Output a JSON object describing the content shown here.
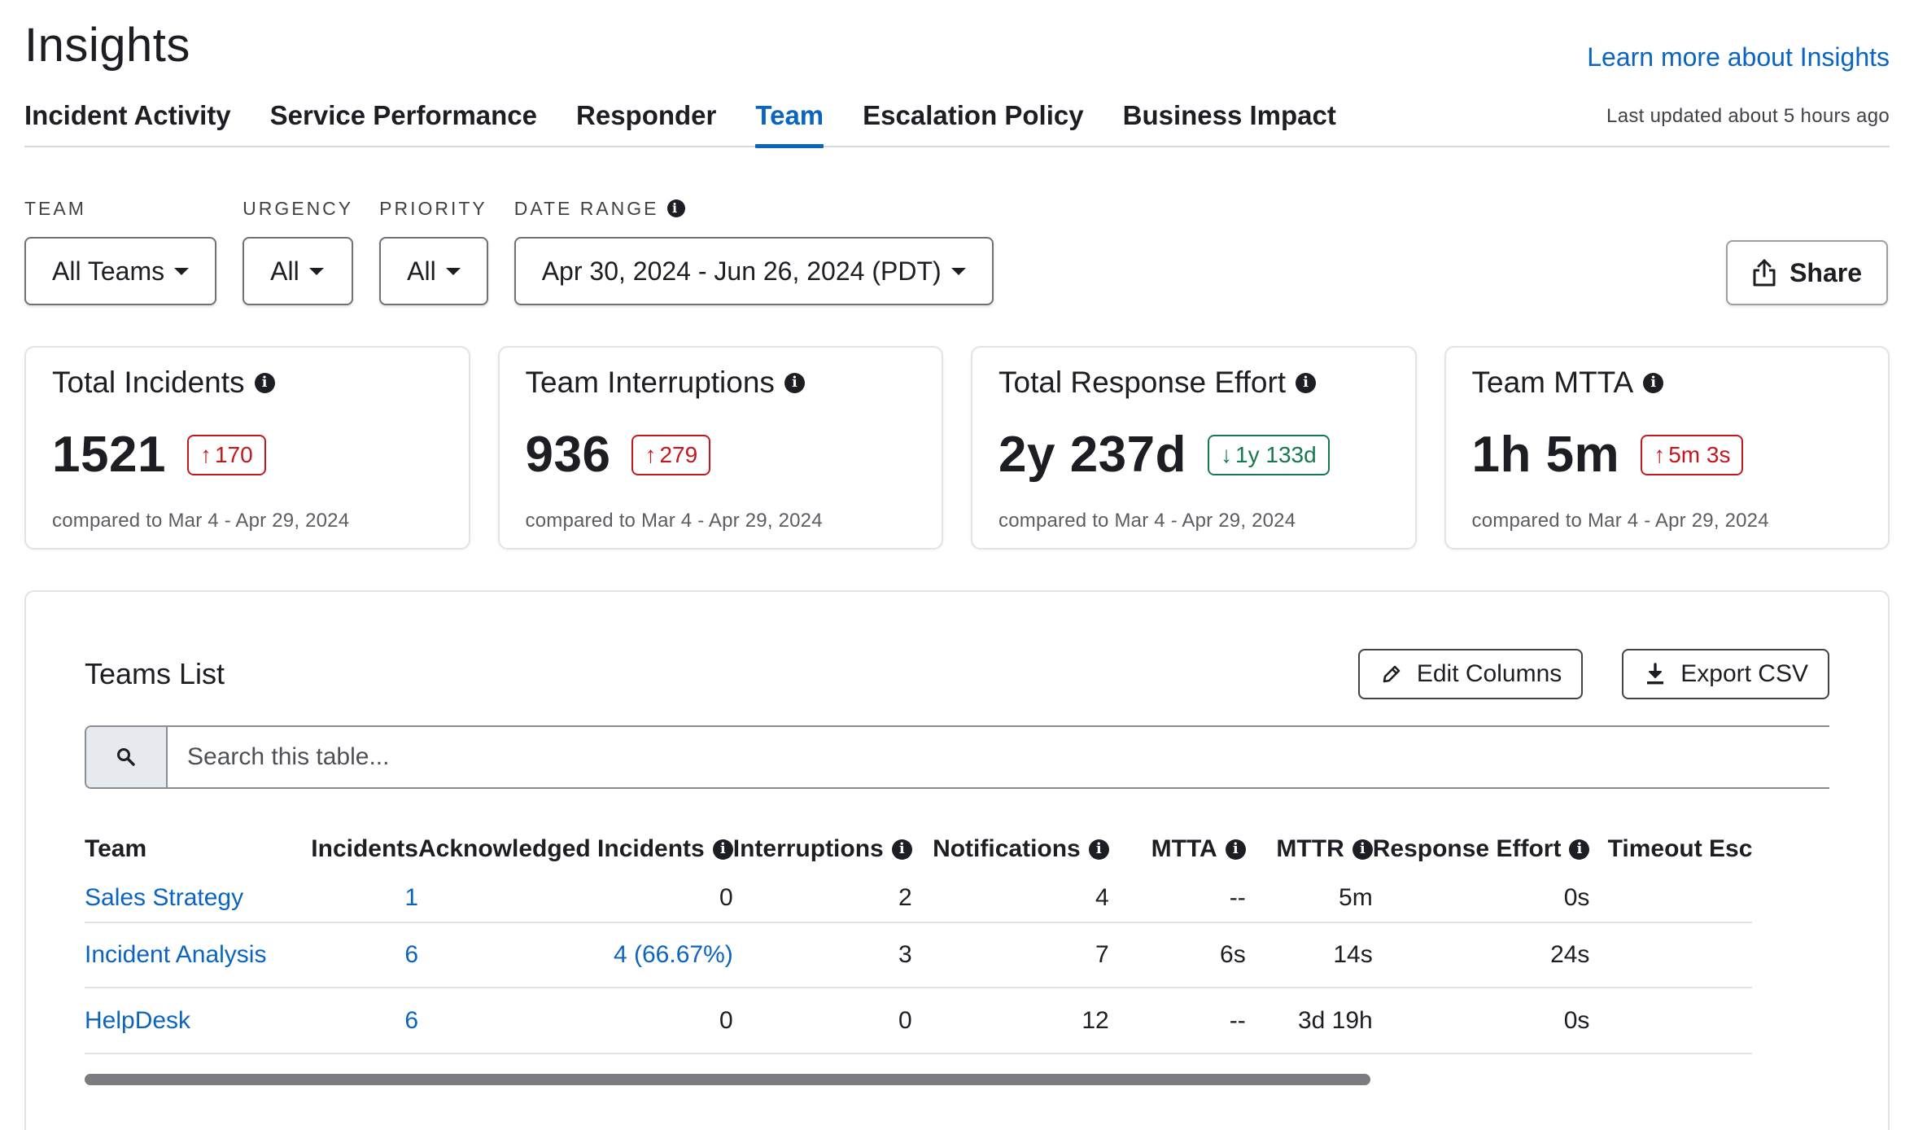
{
  "header": {
    "title": "Insights",
    "learn_more": "Learn more about Insights"
  },
  "tabs": [
    {
      "label": "Incident Activity",
      "active": false
    },
    {
      "label": "Service Performance",
      "active": false
    },
    {
      "label": "Responder",
      "active": false
    },
    {
      "label": "Team",
      "active": true
    },
    {
      "label": "Escalation Policy",
      "active": false
    },
    {
      "label": "Business Impact",
      "active": false
    }
  ],
  "last_updated": "Last updated about 5 hours ago",
  "filters": {
    "team": {
      "label": "TEAM",
      "value": "All Teams"
    },
    "urgency": {
      "label": "URGENCY",
      "value": "All"
    },
    "priority": {
      "label": "PRIORITY",
      "value": "All"
    },
    "date_range": {
      "label": "DATE RANGE",
      "value": "Apr 30, 2024 - Jun 26, 2024 (PDT)"
    }
  },
  "share_label": "Share",
  "cards": [
    {
      "title": "Total Incidents",
      "value": "1521",
      "delta": "170",
      "direction": "up",
      "compare": "compared to Mar 4 - Apr 29, 2024"
    },
    {
      "title": "Team Interruptions",
      "value": "936",
      "delta": "279",
      "direction": "up",
      "compare": "compared to Mar 4 - Apr 29, 2024"
    },
    {
      "title": "Total Response Effort",
      "value": "2y 237d",
      "delta": "1y 133d",
      "direction": "down",
      "compare": "compared to Mar 4 - Apr 29, 2024"
    },
    {
      "title": "Team MTTA",
      "value": "1h 5m",
      "delta": "5m 3s",
      "direction": "up",
      "compare": "compared to Mar 4 - Apr 29, 2024"
    }
  ],
  "teams_list": {
    "title": "Teams List",
    "edit_columns": "Edit Columns",
    "export_csv": "Export CSV",
    "search_placeholder": "Search this table...",
    "columns": [
      "Team",
      "Incidents",
      "Acknowledged Incidents",
      "Interruptions",
      "Notifications",
      "MTTA",
      "MTTR",
      "Response Effort",
      "Timeout Esc"
    ],
    "rows": [
      [
        "Sales Strategy",
        "1",
        "0",
        "2",
        "4",
        "--",
        "5m",
        "0s",
        ""
      ],
      [
        "Incident Analysis",
        "6",
        "4 (66.67%)",
        "3",
        "7",
        "6s",
        "14s",
        "24s",
        ""
      ],
      [
        "HelpDesk",
        "6",
        "0",
        "0",
        "12",
        "--",
        "3d 19h",
        "0s",
        ""
      ]
    ]
  },
  "colors": {
    "accent": "#0b64c0",
    "delta_up": "#c4171c",
    "delta_down": "#16794e"
  }
}
